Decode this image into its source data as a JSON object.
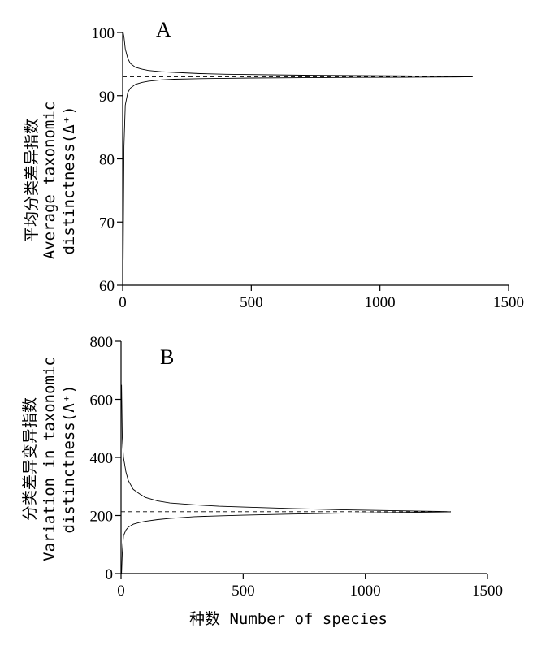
{
  "chart_data": [
    {
      "type": "line",
      "panel": "A",
      "ylabel_cn": "平均分类差异指数",
      "ylabel_en_1": "Average taxonomic",
      "ylabel_en_2": "distinctness(Δ⁺)",
      "xlabel": "",
      "xlim": [
        0,
        1500
      ],
      "ylim": [
        60,
        100
      ],
      "xticks": [
        "0",
        "500",
        "1000",
        "1500"
      ],
      "yticks": [
        "60",
        "70",
        "80",
        "90",
        "100"
      ],
      "mean": 93.0,
      "series": [
        {
          "role": "upper",
          "x": [
            2,
            5,
            10,
            20,
            30,
            50,
            75,
            100,
            150,
            200,
            300,
            400,
            500,
            700,
            900,
            1100,
            1300,
            1360
          ],
          "values": [
            100,
            99.3,
            97.4,
            95.9,
            95.1,
            94.5,
            94.2,
            94.0,
            93.8,
            93.7,
            93.5,
            93.4,
            93.35,
            93.25,
            93.2,
            93.15,
            93.05,
            93.0
          ]
        },
        {
          "role": "lower",
          "x": [
            2,
            5,
            10,
            20,
            30,
            50,
            75,
            100,
            150,
            200,
            300,
            400,
            500,
            700,
            900,
            1100,
            1300,
            1360
          ],
          "values": [
            64,
            82,
            88.5,
            90.5,
            91.2,
            91.8,
            92.1,
            92.3,
            92.5,
            92.6,
            92.7,
            92.75,
            92.8,
            92.85,
            92.9,
            92.93,
            92.97,
            93.0
          ]
        }
      ]
    },
    {
      "type": "line",
      "panel": "B",
      "ylabel_cn": "分类差异变异指数",
      "ylabel_en_1": "Variation in taxonomic",
      "ylabel_en_2": "distinctness(Λ⁺)",
      "xlabel": "种数  Number of species",
      "xlim": [
        0,
        1500
      ],
      "ylim": [
        0,
        800
      ],
      "xticks": [
        "0",
        "500",
        "1000",
        "1500"
      ],
      "yticks": [
        "0",
        "200",
        "400",
        "600",
        "800"
      ],
      "mean": 213,
      "series": [
        {
          "role": "upper",
          "x": [
            2,
            5,
            10,
            20,
            30,
            50,
            75,
            100,
            150,
            200,
            300,
            400,
            500,
            700,
            900,
            1100,
            1300,
            1350
          ],
          "values": [
            650,
            470,
            400,
            350,
            320,
            290,
            275,
            262,
            250,
            243,
            237,
            232,
            229,
            224,
            220,
            217,
            214,
            213
          ]
        },
        {
          "role": "lower",
          "x": [
            2,
            5,
            10,
            20,
            30,
            50,
            75,
            100,
            150,
            200,
            300,
            400,
            500,
            700,
            900,
            1100,
            1300,
            1350
          ],
          "values": [
            0,
            70,
            130,
            150,
            160,
            170,
            176,
            180,
            186,
            190,
            196,
            199,
            201,
            205,
            208,
            210,
            212,
            213
          ]
        }
      ]
    }
  ]
}
